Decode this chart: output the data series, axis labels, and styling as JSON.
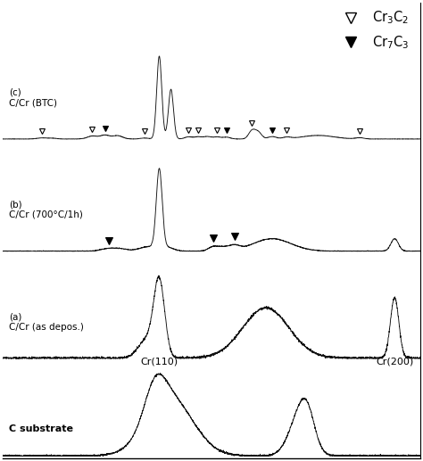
{
  "background_color": "#ffffff",
  "line_color": "#111111",
  "spectra_labels": [
    "C substrate",
    "(a)\nC/Cr (as depos.)",
    "(b)\nC/Cr (700°C/1h)",
    "(c)\nC/Cr (BTC)"
  ],
  "offsets": [
    0.0,
    0.2,
    0.42,
    0.65
  ],
  "scale": 0.17,
  "cr110_label": "Cr(110)",
  "cr200_label": "Cr(200)",
  "noise_seed": 7
}
